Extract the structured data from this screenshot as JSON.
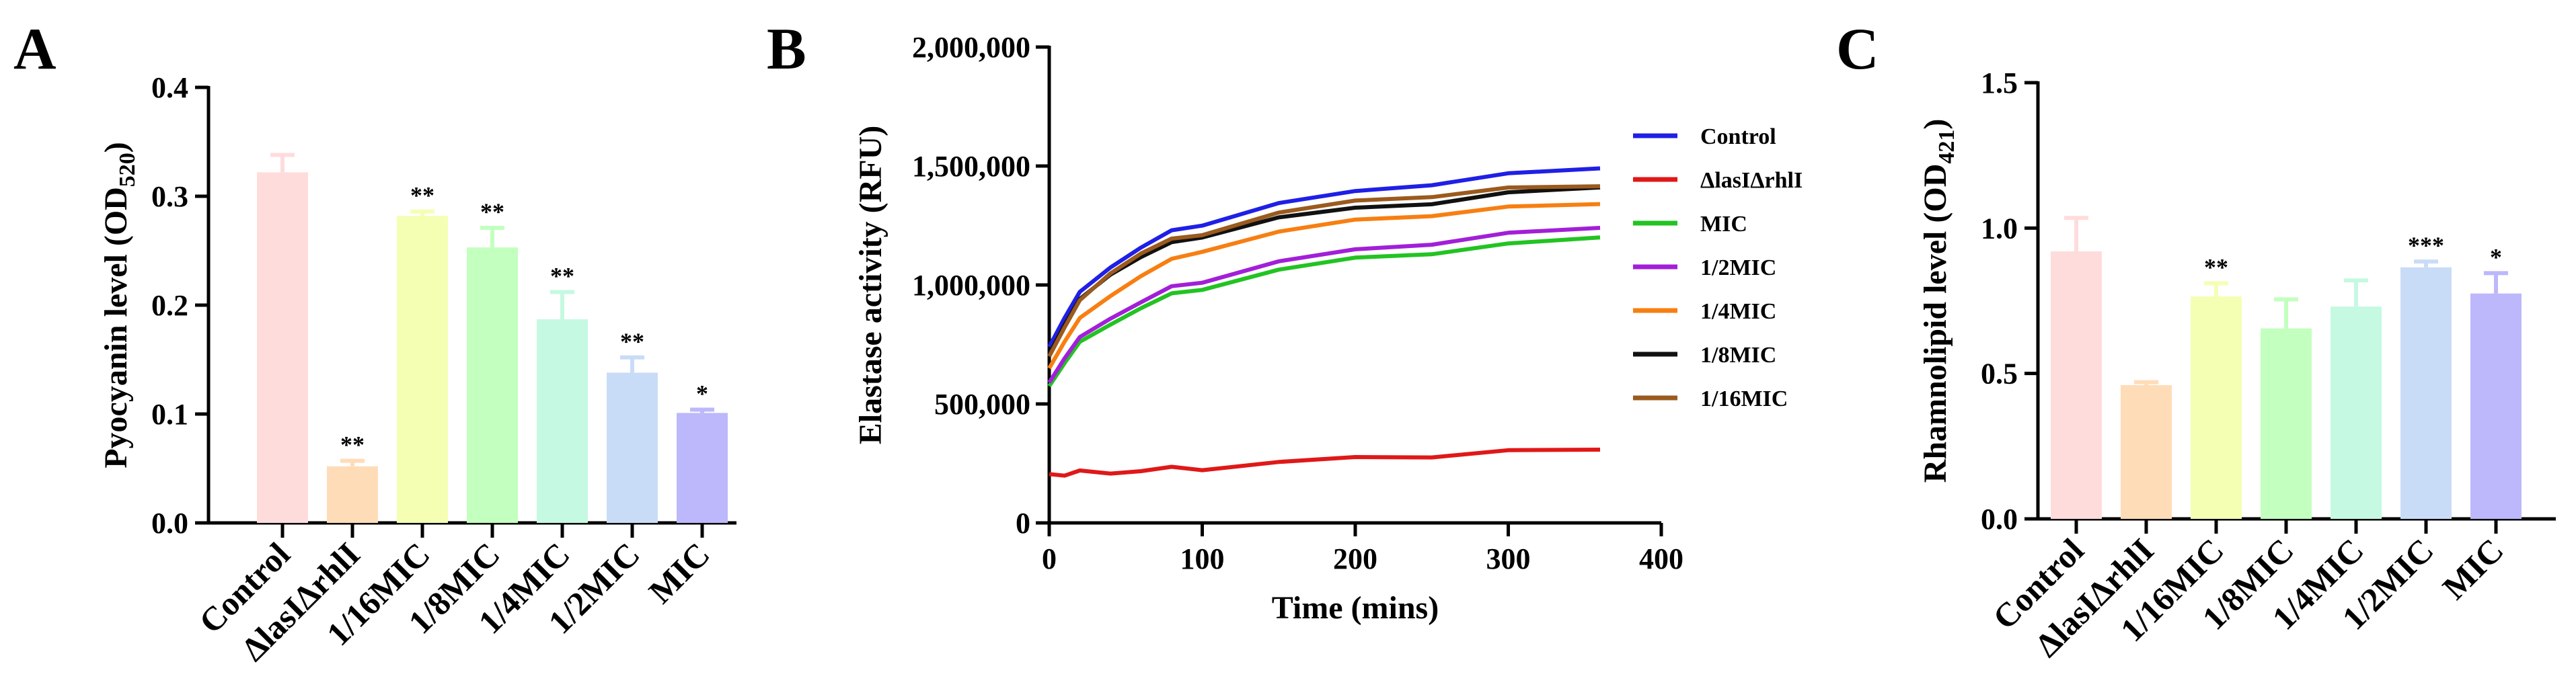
{
  "figure": {
    "panel_labels": [
      "A",
      "B",
      "C"
    ]
  },
  "chart_data": [
    {
      "type": "bar",
      "panel": "A",
      "ylabel": "Pyocyanin level (OD520)",
      "ylabel_main": "Pyocyanin level (OD",
      "ylabel_sub": "520",
      "ylabel_close": ")",
      "xlabel": "",
      "ylim": [
        0,
        0.4
      ],
      "yticks": [
        0.0,
        0.1,
        0.2,
        0.3,
        0.4
      ],
      "ytick_labels": [
        "0.0",
        "0.1",
        "0.2",
        "0.3",
        "0.4"
      ],
      "categories": [
        "Control",
        "ΔlasIΔrhlI",
        "1/16MIC",
        "1/8MIC",
        "1/4MIC",
        "1/2MIC",
        "MIC"
      ],
      "values": [
        0.322,
        0.052,
        0.282,
        0.253,
        0.187,
        0.138,
        0.101
      ],
      "errors": [
        0.016,
        0.005,
        0.004,
        0.018,
        0.025,
        0.014,
        0.003
      ],
      "significance": [
        "",
        "**",
        "**",
        "**",
        "**",
        "**",
        "*"
      ],
      "colors": [
        "#ffdcdc",
        "#ffdcb8",
        "#f5ffb4",
        "#c3ffbf",
        "#c5f9e2",
        "#c9dcf7",
        "#bcb8fb"
      ]
    },
    {
      "type": "line",
      "panel": "B",
      "xlabel": "Time (mins)",
      "ylabel": "Elastase activity (RFU)",
      "xlim": [
        0,
        400
      ],
      "ylim": [
        0,
        2000000
      ],
      "xticks": [
        0,
        100,
        200,
        300,
        400
      ],
      "xtick_labels": [
        "0",
        "100",
        "200",
        "300",
        "400"
      ],
      "yticks": [
        0,
        500000,
        1000000,
        1500000,
        2000000
      ],
      "ytick_labels": [
        "0",
        "500,000",
        "1,000,000",
        "1,500,000",
        "2,000,000"
      ],
      "x": [
        0,
        10,
        20,
        40,
        60,
        80,
        100,
        150,
        200,
        250,
        300,
        360
      ],
      "series": [
        {
          "name": "Control",
          "color": "#1f1fe6",
          "values": [
            740000,
            870000,
            960000,
            1080000,
            1160000,
            1220000,
            1260000,
            1340000,
            1390000,
            1430000,
            1460000,
            1490000
          ]
        },
        {
          "name": "ΔlasIΔrhlI",
          "color": "#e01818",
          "values": [
            205000,
            207000,
            209000,
            214000,
            220000,
            226000,
            232000,
            252000,
            272000,
            286000,
            296000,
            308000
          ]
        },
        {
          "name": "MIC",
          "color": "#22c322",
          "values": [
            575000,
            680000,
            750000,
            840000,
            905000,
            955000,
            990000,
            1060000,
            1110000,
            1140000,
            1165000,
            1200000
          ]
        },
        {
          "name": "1/2MIC",
          "color": "#a21fd8",
          "values": [
            590000,
            700000,
            770000,
            865000,
            930000,
            985000,
            1020000,
            1095000,
            1145000,
            1180000,
            1210000,
            1240000
          ]
        },
        {
          "name": "1/4MIC",
          "color": "#f77f12",
          "values": [
            650000,
            770000,
            850000,
            960000,
            1040000,
            1100000,
            1150000,
            1220000,
            1270000,
            1300000,
            1320000,
            1340000
          ]
        },
        {
          "name": "1/8MIC",
          "color": "#111111",
          "values": [
            710000,
            840000,
            930000,
            1050000,
            1120000,
            1170000,
            1210000,
            1280000,
            1320000,
            1350000,
            1380000,
            1410000
          ]
        },
        {
          "name": "1/16MIC",
          "color": "#9b5a1e",
          "values": [
            700000,
            830000,
            925000,
            1055000,
            1135000,
            1185000,
            1220000,
            1300000,
            1350000,
            1380000,
            1400000,
            1415000
          ]
        }
      ]
    },
    {
      "type": "bar",
      "panel": "C",
      "ylabel": "Rhamnolipid level (OD421)",
      "ylabel_main": "Rhamnolipid level (OD",
      "ylabel_sub": "421",
      "ylabel_close": ")",
      "xlabel": "",
      "ylim": [
        0,
        1.5
      ],
      "yticks": [
        0.0,
        0.5,
        1.0,
        1.5
      ],
      "ytick_labels": [
        "0.0",
        "0.5",
        "1.0",
        "1.5"
      ],
      "categories": [
        "Control",
        "ΔlasIΔrhlI",
        "1/16MIC",
        "1/8MIC",
        "1/4MIC",
        "1/2MIC",
        "MIC"
      ],
      "values": [
        0.92,
        0.46,
        0.765,
        0.655,
        0.73,
        0.865,
        0.775
      ],
      "errors": [
        0.115,
        0.01,
        0.045,
        0.1,
        0.09,
        0.02,
        0.07
      ],
      "significance": [
        "",
        "",
        "**",
        "",
        "",
        "***",
        "*"
      ],
      "colors": [
        "#ffdcdc",
        "#ffdcb8",
        "#f5ffb4",
        "#c3ffbf",
        "#c5f9e2",
        "#c9dcf7",
        "#bcb8fb"
      ]
    }
  ]
}
